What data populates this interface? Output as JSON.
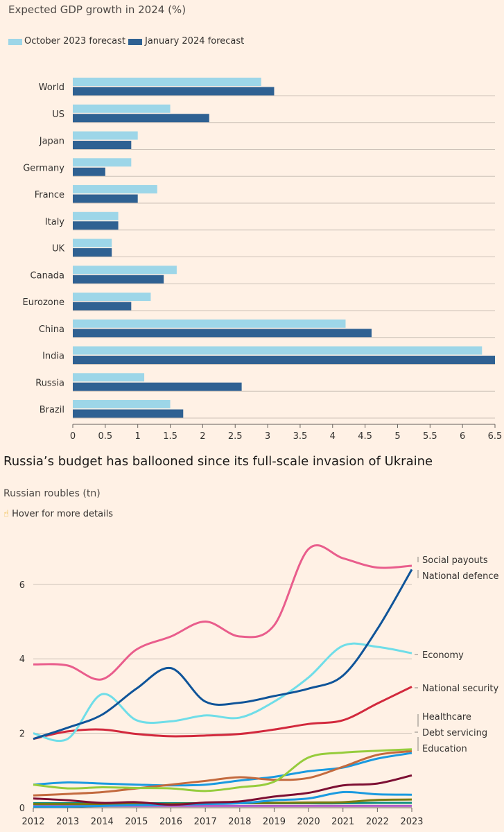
{
  "chart_data": [
    {
      "type": "bar",
      "orientation": "horizontal",
      "title": "Expected GDP growth in 2024 (%)",
      "categories": [
        "World",
        "US",
        "Japan",
        "Germany",
        "France",
        "Italy",
        "UK",
        "Canada",
        "Eurozone",
        "China",
        "India",
        "Russia",
        "Brazil"
      ],
      "series": [
        {
          "name": "October 2023 forecast",
          "color": "#9dd6e8",
          "values": [
            2.9,
            1.5,
            1.0,
            0.9,
            1.3,
            0.7,
            0.6,
            1.6,
            1.2,
            4.2,
            6.3,
            1.1,
            1.5
          ]
        },
        {
          "name": "January 2024 forecast",
          "color": "#2f6192",
          "values": [
            3.1,
            2.1,
            0.9,
            0.5,
            1.0,
            0.7,
            0.6,
            1.4,
            0.9,
            4.6,
            6.5,
            2.6,
            1.7
          ]
        }
      ],
      "xlim": [
        0,
        6.5
      ],
      "xticks": [
        "0",
        "0.5",
        "1",
        "1.5",
        "2",
        "2.5",
        "3",
        "3.5",
        "4",
        "4.5",
        "5",
        "5.5",
        "6",
        "6.5"
      ],
      "grid": true,
      "legend": "top-left"
    },
    {
      "type": "line",
      "title": "Russia’s budget has ballooned since its full-scale invasion of Ukraine",
      "subtitle": "Russian roubles (tn)",
      "note": "Hover for more details",
      "x": [
        2012,
        2013,
        2014,
        2015,
        2016,
        2017,
        2018,
        2019,
        2020,
        2021,
        2022,
        2023
      ],
      "xticks": [
        "2012",
        "2013",
        "2014",
        "2015",
        "2016",
        "2017",
        "2018",
        "2019",
        "2020",
        "2021",
        "2022",
        "2023"
      ],
      "yticks": [
        "0",
        "2",
        "4",
        "6"
      ],
      "ylim": [
        0,
        7
      ],
      "grid": true,
      "legend": "direct labels right",
      "series": [
        {
          "name": "Social payouts",
          "color": "#e95d8c",
          "values": [
            3.85,
            3.82,
            3.45,
            4.25,
            4.6,
            5.0,
            4.6,
            4.9,
            6.95,
            6.7,
            6.45,
            6.5
          ]
        },
        {
          "name": "National defence",
          "color": "#0f5499",
          "values": [
            1.85,
            2.15,
            2.5,
            3.2,
            3.75,
            2.85,
            2.82,
            3.0,
            3.2,
            3.55,
            4.8,
            6.4
          ]
        },
        {
          "name": "Economy",
          "color": "#6fdde8",
          "values": [
            2.0,
            1.85,
            3.05,
            2.35,
            2.32,
            2.48,
            2.42,
            2.85,
            3.5,
            4.35,
            4.32,
            4.15
          ]
        },
        {
          "name": "National security",
          "color": "#d2293d",
          "values": [
            1.85,
            2.05,
            2.1,
            1.98,
            1.92,
            1.94,
            1.98,
            2.1,
            2.25,
            2.35,
            2.8,
            3.25
          ]
        },
        {
          "name": "Healthcare",
          "color": "#96cc3c",
          "values": [
            0.62,
            0.52,
            0.55,
            0.53,
            0.52,
            0.45,
            0.55,
            0.7,
            1.35,
            1.48,
            1.53,
            1.57
          ]
        },
        {
          "name": "Debt servicing",
          "color": "#c36a3e",
          "values": [
            0.33,
            0.37,
            0.42,
            0.52,
            0.62,
            0.72,
            0.82,
            0.75,
            0.8,
            1.1,
            1.42,
            1.52
          ]
        },
        {
          "name": "Education",
          "color": "#1a9ae0",
          "values": [
            0.62,
            0.68,
            0.65,
            0.62,
            0.6,
            0.62,
            0.73,
            0.83,
            0.98,
            1.08,
            1.32,
            1.47
          ]
        },
        {
          "color": "#7d0f33",
          "values": [
            0.25,
            0.2,
            0.13,
            0.15,
            0.08,
            0.14,
            0.17,
            0.3,
            0.4,
            0.6,
            0.65,
            0.87
          ]
        },
        {
          "color": "#1a9ae0",
          "values": [
            0.03,
            0.03,
            0.05,
            0.07,
            0.08,
            0.1,
            0.12,
            0.2,
            0.25,
            0.42,
            0.36,
            0.35
          ]
        },
        {
          "color": "#7a7a10",
          "values": [
            0.1,
            0.1,
            0.1,
            0.1,
            0.1,
            0.12,
            0.13,
            0.13,
            0.14,
            0.15,
            0.21,
            0.22
          ]
        },
        {
          "color": "#0f8f80",
          "values": [
            0.12,
            0.12,
            0.12,
            0.12,
            0.12,
            0.12,
            0.12,
            0.12,
            0.12,
            0.12,
            0.13,
            0.13
          ]
        },
        {
          "color": "#b05cc8",
          "values": [
            0.05,
            0.05,
            0.05,
            0.05,
            0.05,
            0.05,
            0.05,
            0.05,
            0.05,
            0.05,
            0.05,
            0.05
          ]
        }
      ]
    }
  ]
}
